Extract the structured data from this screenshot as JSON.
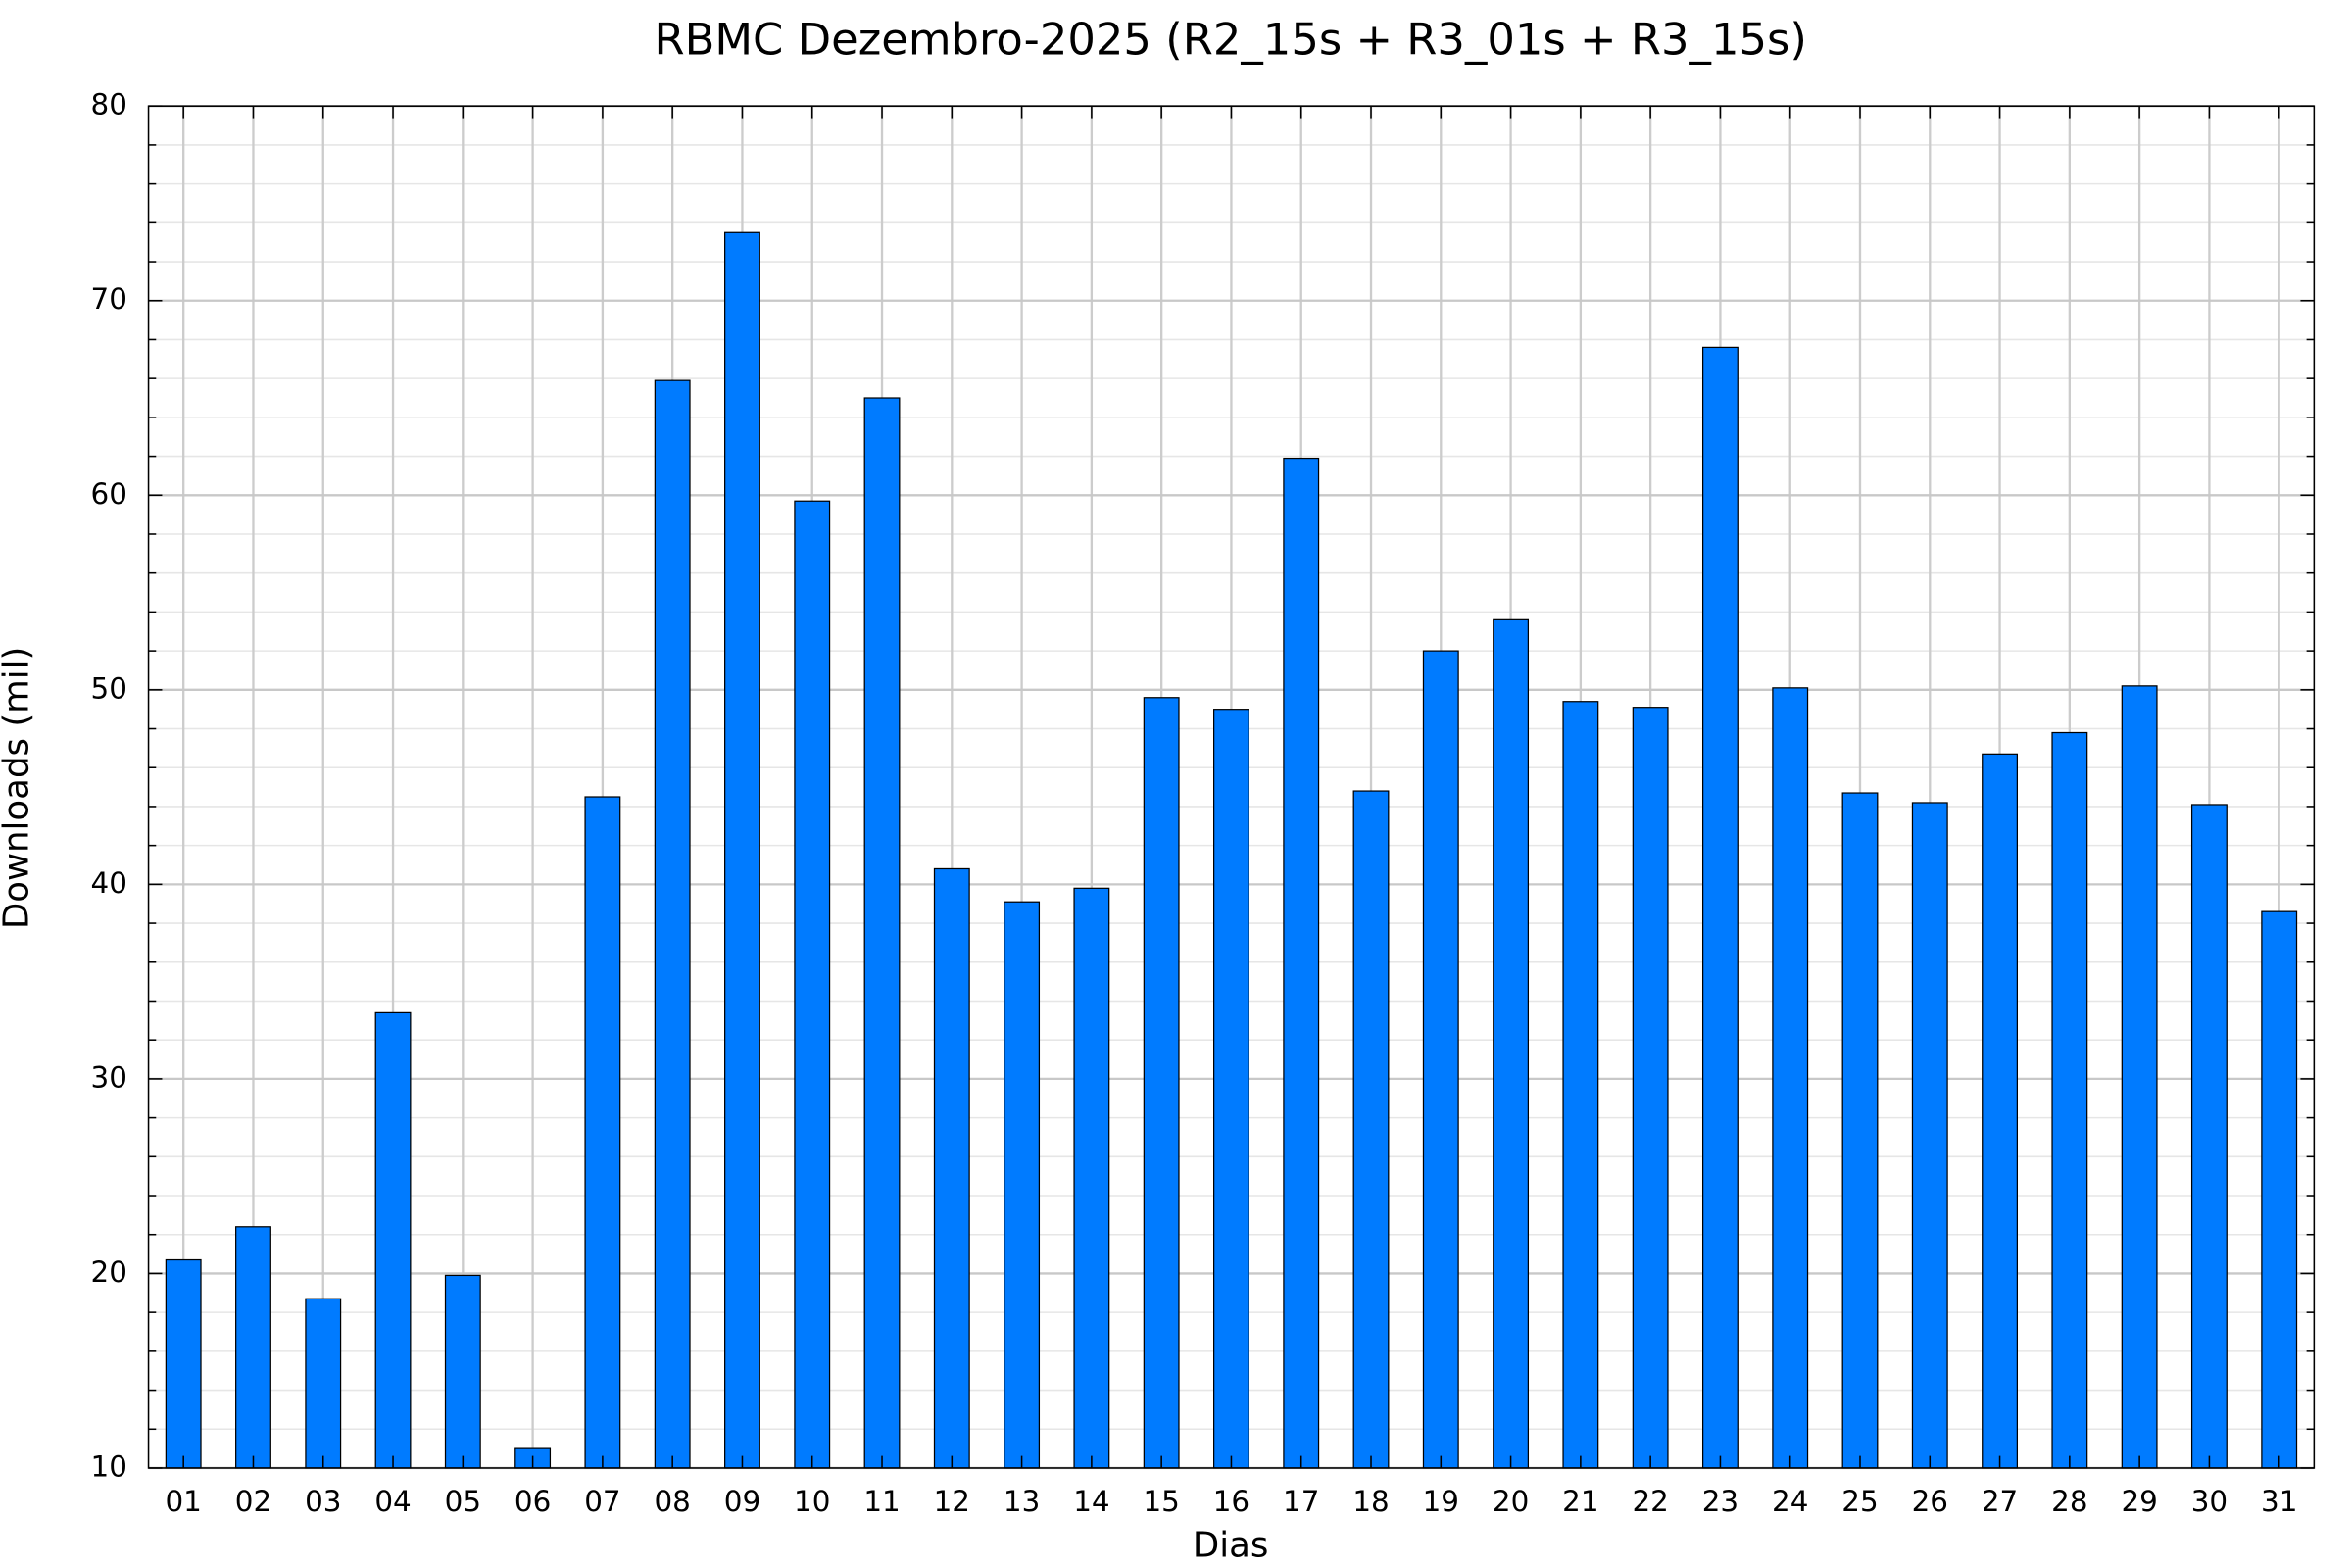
{
  "chart_data": {
    "type": "bar",
    "title": "RBMC Dezembro-2025 (R2_15s + R3_01s + R3_15s)",
    "x_label": "Dias",
    "y_label": "Downloads (mil)",
    "categories": [
      "01",
      "02",
      "03",
      "04",
      "05",
      "06",
      "07",
      "08",
      "09",
      "10",
      "11",
      "12",
      "13",
      "14",
      "15",
      "16",
      "17",
      "18",
      "19",
      "20",
      "21",
      "22",
      "23",
      "24",
      "25",
      "26",
      "27",
      "28",
      "29",
      "30",
      "31"
    ],
    "values": [
      20.7,
      22.4,
      18.7,
      33.4,
      19.9,
      11.0,
      44.5,
      65.9,
      73.5,
      59.7,
      65.0,
      40.8,
      39.1,
      39.8,
      49.6,
      49.0,
      61.9,
      44.8,
      52.0,
      53.6,
      49.4,
      49.1,
      67.6,
      50.1,
      44.7,
      44.2,
      46.7,
      47.8,
      50.2,
      44.1,
      38.6
    ],
    "color": "#007bff",
    "ylim": [
      10,
      80
    ],
    "yticks": [
      10,
      20,
      30,
      40,
      50,
      60,
      70,
      80
    ],
    "minor_yticks": [
      12,
      14,
      16,
      18,
      22,
      24,
      26,
      28,
      32,
      34,
      36,
      38,
      42,
      44,
      46,
      48,
      52,
      54,
      56,
      58,
      62,
      64,
      66,
      68,
      72,
      74,
      76,
      78
    ],
    "grid": true
  }
}
